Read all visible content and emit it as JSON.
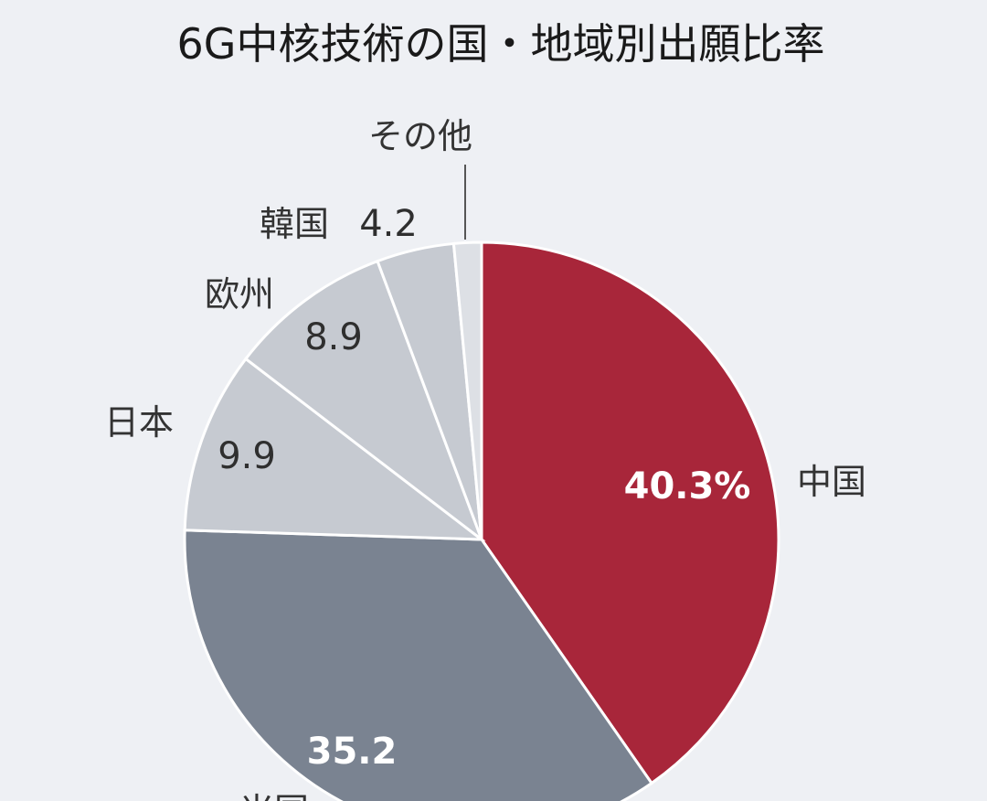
{
  "chart_data": {
    "type": "pie",
    "title": "6G中核技術の国・地域別出願比率",
    "slices": [
      {
        "label": "中国",
        "value": 40.3,
        "value_text": "40.3%",
        "color": "#a8263a"
      },
      {
        "label": "米国",
        "value": 35.2,
        "value_text": "35.2",
        "color": "#7a8391"
      },
      {
        "label": "日本",
        "value": 9.9,
        "value_text": "9.9",
        "color": "#c6cad1"
      },
      {
        "label": "欧州",
        "value": 8.9,
        "value_text": "8.9",
        "color": "#c6cad1"
      },
      {
        "label": "韓国",
        "value": 4.2,
        "value_text": "4.2",
        "color": "#c6cad1"
      },
      {
        "label": "その他",
        "value": 1.5,
        "value_text": "",
        "color": "#dde0e5"
      }
    ],
    "start_angle_deg": 0,
    "direction": "clockwise",
    "legend": "none"
  }
}
